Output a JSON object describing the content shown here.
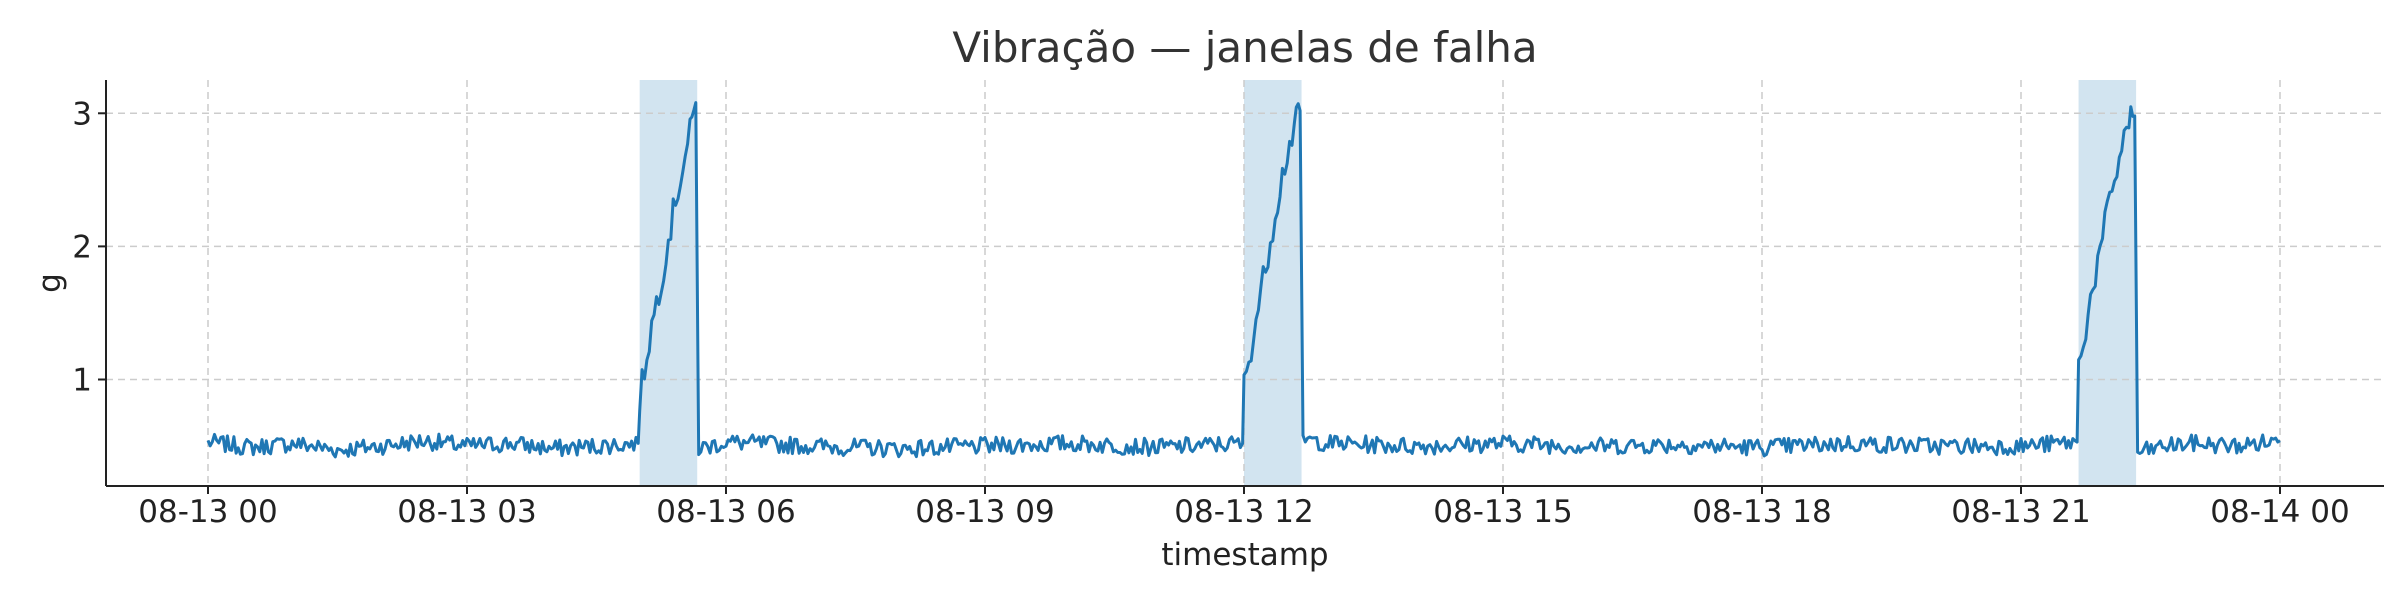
{
  "chart_data": {
    "type": "line",
    "title": "Vibração — janelas de falha",
    "xlabel": "timestamp",
    "ylabel": "g",
    "x_range": [
      "2024-08-13T00:00",
      "2024-08-14T00:00"
    ],
    "ylim": [
      0.2,
      3.25
    ],
    "xticks": [
      {
        "t": "2024-08-13T00:00",
        "label": "08-13 00"
      },
      {
        "t": "2024-08-13T03:00",
        "label": "08-13 03"
      },
      {
        "t": "2024-08-13T06:00",
        "label": "08-13 06"
      },
      {
        "t": "2024-08-13T09:00",
        "label": "08-13 09"
      },
      {
        "t": "2024-08-13T12:00",
        "label": "08-13 12"
      },
      {
        "t": "2024-08-13T15:00",
        "label": "08-13 15"
      },
      {
        "t": "2024-08-13T18:00",
        "label": "08-13 18"
      },
      {
        "t": "2024-08-13T21:00",
        "label": "08-13 21"
      },
      {
        "t": "2024-08-14T00:00",
        "label": "08-14 00"
      }
    ],
    "yticks": [
      {
        "v": 1,
        "label": "1"
      },
      {
        "v": 2,
        "label": "2"
      },
      {
        "v": 3,
        "label": "3"
      }
    ],
    "grid": true,
    "shaded_windows": [
      {
        "start": "2024-08-13T05:00",
        "end": "2024-08-13T05:40"
      },
      {
        "start": "2024-08-13T12:00",
        "end": "2024-08-13T12:40"
      },
      {
        "start": "2024-08-13T21:40",
        "end": "2024-08-13T22:20"
      }
    ],
    "series": [
      {
        "color": "#1f77b4",
        "baseline": 0.5,
        "points": [
          [
            "2024-08-13T00:00",
            0.53
          ],
          [
            "2024-08-13T00:30",
            0.49
          ],
          [
            "2024-08-13T01:00",
            0.52
          ],
          [
            "2024-08-13T01:30",
            0.47
          ],
          [
            "2024-08-13T02:00",
            0.5
          ],
          [
            "2024-08-13T02:30",
            0.54
          ],
          [
            "2024-08-13T03:00",
            0.5
          ],
          [
            "2024-08-13T03:30",
            0.52
          ],
          [
            "2024-08-13T04:00",
            0.48
          ],
          [
            "2024-08-13T04:30",
            0.5
          ],
          [
            "2024-08-13T04:59",
            0.52
          ],
          [
            "2024-08-13T05:00",
            0.85
          ],
          [
            "2024-08-13T05:05",
            1.2
          ],
          [
            "2024-08-13T05:10",
            1.5
          ],
          [
            "2024-08-13T05:15",
            1.75
          ],
          [
            "2024-08-13T05:20",
            2.05
          ],
          [
            "2024-08-13T05:25",
            2.35
          ],
          [
            "2024-08-13T05:30",
            2.6
          ],
          [
            "2024-08-13T05:35",
            2.85
          ],
          [
            "2024-08-13T05:39",
            3.08
          ],
          [
            "2024-08-13T05:41",
            0.48
          ],
          [
            "2024-08-13T06:00",
            0.53
          ],
          [
            "2024-08-13T07:00",
            0.5
          ],
          [
            "2024-08-13T08:00",
            0.48
          ],
          [
            "2024-08-13T09:00",
            0.5
          ],
          [
            "2024-08-13T10:00",
            0.52
          ],
          [
            "2024-08-13T11:00",
            0.49
          ],
          [
            "2024-08-13T11:59",
            0.52
          ],
          [
            "2024-08-13T12:00",
            0.95
          ],
          [
            "2024-08-13T12:05",
            1.25
          ],
          [
            "2024-08-13T12:10",
            1.55
          ],
          [
            "2024-08-13T12:15",
            1.85
          ],
          [
            "2024-08-13T12:20",
            2.15
          ],
          [
            "2024-08-13T12:25",
            2.45
          ],
          [
            "2024-08-13T12:30",
            2.7
          ],
          [
            "2024-08-13T12:35",
            2.9
          ],
          [
            "2024-08-13T12:39",
            3.02
          ],
          [
            "2024-08-13T12:41",
            0.55
          ],
          [
            "2024-08-13T13:00",
            0.52
          ],
          [
            "2024-08-13T14:00",
            0.5
          ],
          [
            "2024-08-13T15:00",
            0.52
          ],
          [
            "2024-08-13T16:00",
            0.5
          ],
          [
            "2024-08-13T17:00",
            0.51
          ],
          [
            "2024-08-13T18:00",
            0.49
          ],
          [
            "2024-08-13T19:00",
            0.52
          ],
          [
            "2024-08-13T20:00",
            0.5
          ],
          [
            "2024-08-13T21:00",
            0.5
          ],
          [
            "2024-08-13T21:39",
            0.53
          ],
          [
            "2024-08-13T21:40",
            1.1
          ],
          [
            "2024-08-13T21:45",
            1.4
          ],
          [
            "2024-08-13T21:50",
            1.7
          ],
          [
            "2024-08-13T21:55",
            1.95
          ],
          [
            "2024-08-13T22:00",
            2.25
          ],
          [
            "2024-08-13T22:05",
            2.5
          ],
          [
            "2024-08-13T22:10",
            2.75
          ],
          [
            "2024-08-13T22:15",
            2.95
          ],
          [
            "2024-08-13T22:19",
            2.98
          ],
          [
            "2024-08-13T22:21",
            0.45
          ],
          [
            "2024-08-13T22:40",
            0.5
          ],
          [
            "2024-08-13T23:00",
            0.52
          ],
          [
            "2024-08-13T23:30",
            0.5
          ],
          [
            "2024-08-14T00:00",
            0.54
          ]
        ]
      }
    ]
  }
}
